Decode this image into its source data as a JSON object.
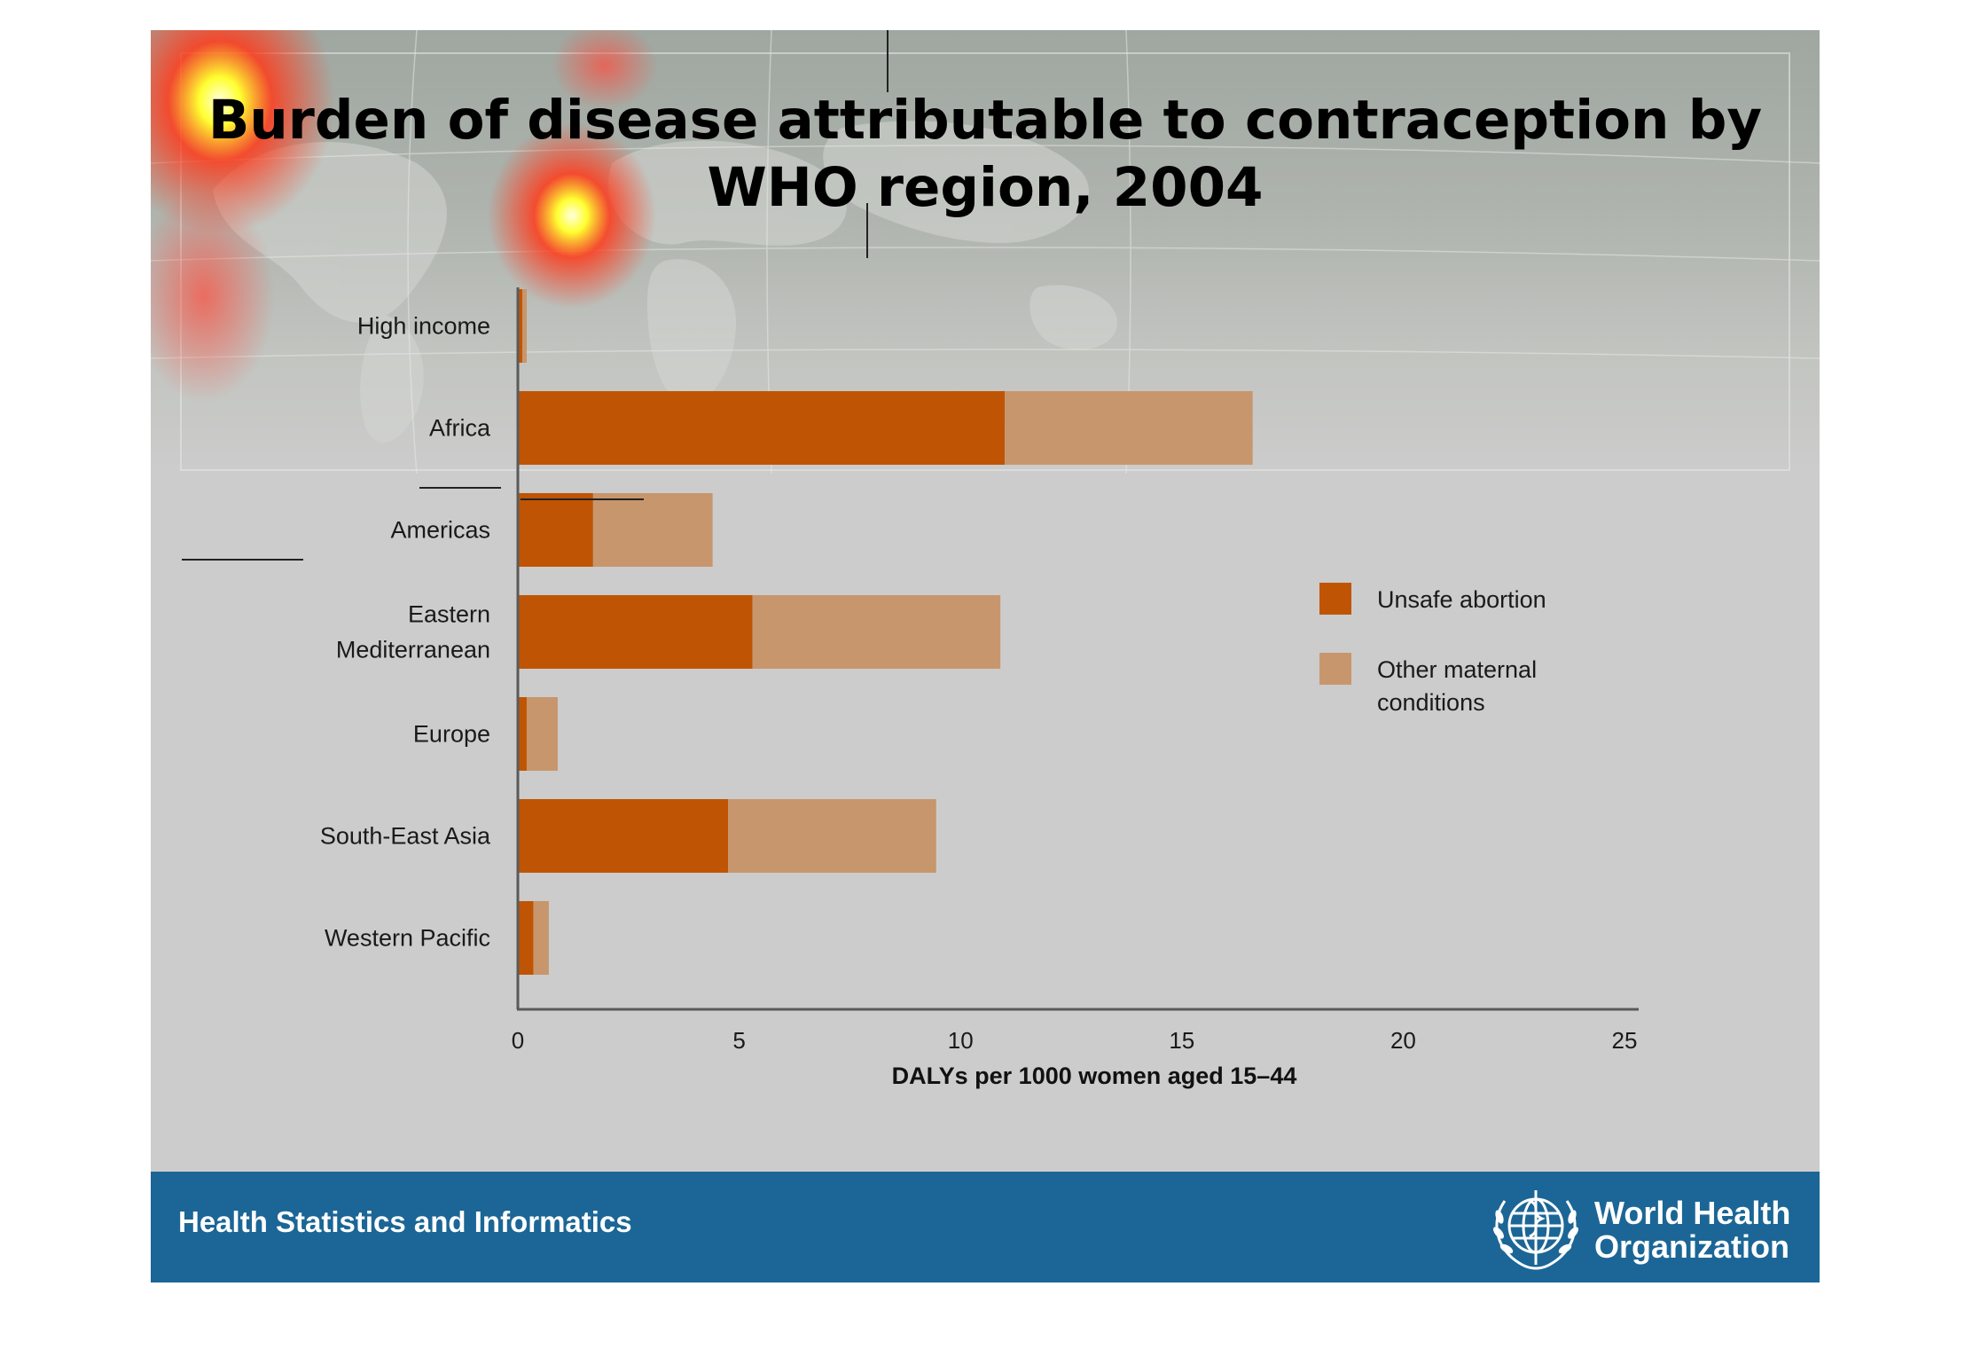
{
  "slide": {
    "title_line1": "Burden of disease attributable to contraception by",
    "title_line2": "WHO region, 2004"
  },
  "footer": {
    "department": "Health Statistics and Informatics",
    "org_line1": "World Health",
    "org_line2": "Organization",
    "bar_color": "#1b6696",
    "logo_icon": "who-emblem-icon"
  },
  "chart_data": {
    "type": "bar",
    "orientation": "horizontal",
    "stacked": true,
    "categories": [
      "High income",
      "Africa",
      "Americas",
      "Eastern Mediterranean",
      "Europe",
      "South-East Asia",
      "Western Pacific"
    ],
    "category_lines": [
      [
        "High income"
      ],
      [
        "Africa"
      ],
      [
        "Americas"
      ],
      [
        "Eastern",
        "Mediterranean"
      ],
      [
        "Europe"
      ],
      [
        "South-East Asia"
      ],
      [
        "Western Pacific"
      ]
    ],
    "series": [
      {
        "name": "Unsafe abortion",
        "color": "#bf5504",
        "values": [
          0.1,
          11.0,
          1.7,
          5.3,
          0.2,
          4.75,
          0.35
        ]
      },
      {
        "name": "Other maternal conditions",
        "color": "#c8966c",
        "values": [
          0.1,
          5.6,
          2.7,
          5.6,
          0.7,
          4.7,
          0.35
        ]
      }
    ],
    "legend_lines": [
      [
        "Unsafe abortion"
      ],
      [
        "Other maternal",
        "conditions"
      ]
    ],
    "xlabel": "DALYs per 1000 women aged 15–44",
    "xlim": [
      0,
      25
    ],
    "xticks": [
      0,
      5,
      10,
      15,
      20,
      25
    ],
    "grid": false,
    "legend_position": "right"
  }
}
